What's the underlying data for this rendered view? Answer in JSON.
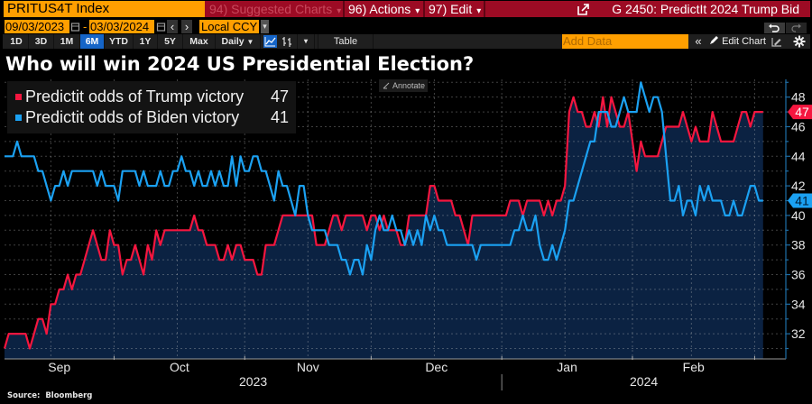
{
  "toolbar": {
    "ticker": "PRITUS4T Index",
    "suggested_charts": "94) Suggested Charts",
    "actions": "96) Actions",
    "edit": "97) Edit",
    "window_title": "G 2450: PredictIt 2024 Trump Bid",
    "start_date": "09/03/2023",
    "date_separator": "-",
    "end_date": "03/03/2024",
    "currency": "Local CCY",
    "periods": [
      "1D",
      "3D",
      "1M",
      "6M",
      "YTD",
      "1Y",
      "5Y",
      "Max"
    ],
    "selected_period": "6M",
    "frequency": "Daily",
    "table_label": "Table",
    "add_data_placeholder": "Add Data",
    "edit_chart": "Edit Chart",
    "annotate": "Annotate"
  },
  "icons": {
    "dropdown": "▾",
    "dropdown_filled": "▼",
    "prev": "‹",
    "next": "›",
    "collapse": "«"
  },
  "colors": {
    "toolbar_orange": "#ff9f00",
    "toolbar_red": "#9c0b24",
    "selected_blue": "#1565c8",
    "trump": "#f5163f",
    "biden": "#1ba1f2",
    "area_fill": "#0b2242"
  },
  "chart_data": {
    "type": "line",
    "title": "Who will win 2024 US Presidential Election?",
    "xlabel": "",
    "ylabel": "",
    "x_start_date": "2023-09-05",
    "x_unit": "days since 2023-09-05",
    "xlim": [
      0,
      185.4
    ],
    "ylim": [
      30.3,
      49.2
    ],
    "y_axis_side": "right",
    "y_ticks": [
      32,
      34,
      36,
      38,
      40,
      42,
      44,
      46,
      48
    ],
    "grid": true,
    "gridline_days": [
      11,
      26,
      41,
      57,
      72,
      87,
      102,
      118,
      133,
      149,
      163,
      178
    ],
    "month_boundary_days": [
      26,
      57,
      87,
      118,
      149,
      178
    ],
    "month_labels": [
      {
        "label": "Sep",
        "day": 13
      },
      {
        "label": "Oct",
        "day": 41.5
      },
      {
        "label": "Nov",
        "day": 72
      },
      {
        "label": "Dec",
        "day": 102.5
      },
      {
        "label": "Jan",
        "day": 133.5
      },
      {
        "label": "Feb",
        "day": 163.5
      }
    ],
    "year_labels": [
      {
        "label": "2023",
        "day": 59
      },
      {
        "label": "2024",
        "day": 151.7
      }
    ],
    "year_boundary_day": 118,
    "legend_position": "top-left",
    "source": "Source:  Bloomberg",
    "series": [
      {
        "key": "trump",
        "name": "Predictit odds of Trump victory",
        "last_value": 47,
        "color": "#f5163f",
        "area_fill": true,
        "area_color": "#0b2242",
        "tag_text_color": "#ffffff",
        "points": [
          [
            0,
            31
          ],
          [
            1,
            32
          ],
          [
            5,
            32
          ],
          [
            6,
            31
          ],
          [
            8,
            33
          ],
          [
            9,
            33
          ],
          [
            10,
            32
          ],
          [
            11,
            34
          ],
          [
            12,
            34
          ],
          [
            13,
            35
          ],
          [
            14,
            35
          ],
          [
            15,
            36
          ],
          [
            16,
            35
          ],
          [
            17,
            36
          ],
          [
            18,
            36
          ],
          [
            21,
            39
          ],
          [
            23,
            37
          ],
          [
            24,
            37
          ],
          [
            25,
            39
          ],
          [
            26,
            38
          ],
          [
            27,
            38
          ],
          [
            28,
            36
          ],
          [
            29,
            37
          ],
          [
            30,
            37
          ],
          [
            31,
            38
          ],
          [
            32,
            37
          ],
          [
            33,
            36
          ],
          [
            34,
            38
          ],
          [
            35,
            37
          ],
          [
            36,
            39
          ],
          [
            37,
            38
          ],
          [
            38,
            39
          ],
          [
            44,
            39
          ],
          [
            45,
            40
          ],
          [
            46,
            39
          ],
          [
            47,
            39
          ],
          [
            48,
            38
          ],
          [
            50,
            38
          ],
          [
            51,
            37
          ],
          [
            52,
            37
          ],
          [
            53,
            38
          ],
          [
            54,
            37
          ],
          [
            55,
            38
          ],
          [
            56,
            38
          ],
          [
            57,
            37
          ],
          [
            59,
            37
          ],
          [
            60,
            36
          ],
          [
            61,
            36
          ],
          [
            62,
            38
          ],
          [
            64,
            38
          ],
          [
            66,
            40
          ],
          [
            73,
            40
          ],
          [
            74,
            38
          ],
          [
            76,
            38
          ],
          [
            77,
            39
          ],
          [
            78,
            40
          ],
          [
            79,
            40
          ],
          [
            80,
            39
          ],
          [
            81,
            40
          ],
          [
            85,
            40
          ],
          [
            86,
            39
          ],
          [
            87,
            40
          ],
          [
            88,
            40
          ],
          [
            89,
            39
          ],
          [
            90,
            40
          ],
          [
            91,
            39
          ],
          [
            93,
            39
          ],
          [
            94,
            38
          ],
          [
            95,
            38
          ],
          [
            96,
            40
          ],
          [
            100,
            40
          ],
          [
            101,
            42
          ],
          [
            102,
            42
          ],
          [
            103,
            41
          ],
          [
            106,
            41
          ],
          [
            107,
            40
          ],
          [
            108,
            40
          ],
          [
            110,
            38
          ],
          [
            111,
            40
          ],
          [
            119,
            40
          ],
          [
            120,
            41
          ],
          [
            122,
            41
          ],
          [
            123,
            40
          ],
          [
            124,
            41
          ],
          [
            127,
            41
          ],
          [
            128,
            40
          ],
          [
            129,
            41
          ],
          [
            130,
            40
          ],
          [
            131,
            41
          ],
          [
            132,
            41
          ],
          [
            133,
            42
          ],
          [
            134,
            47
          ],
          [
            135,
            48
          ],
          [
            136,
            47
          ],
          [
            137,
            47
          ],
          [
            138,
            46
          ],
          [
            139,
            46
          ],
          [
            140,
            47
          ],
          [
            141,
            46
          ],
          [
            142,
            48
          ],
          [
            143,
            46
          ],
          [
            144,
            48
          ],
          [
            145,
            47
          ],
          [
            146,
            46
          ],
          [
            147,
            46
          ],
          [
            148,
            47
          ],
          [
            149,
            45
          ],
          [
            150,
            43
          ],
          [
            151,
            45
          ],
          [
            152,
            44
          ],
          [
            155,
            44
          ],
          [
            157,
            46
          ],
          [
            160,
            46
          ],
          [
            161,
            47
          ],
          [
            163,
            45
          ],
          [
            164,
            46
          ],
          [
            165,
            45
          ],
          [
            167,
            45
          ],
          [
            168,
            47
          ],
          [
            170,
            45
          ],
          [
            173,
            45
          ],
          [
            175,
            47
          ],
          [
            176,
            47
          ],
          [
            177,
            46
          ],
          [
            178,
            47
          ],
          [
            180,
            47
          ]
        ]
      },
      {
        "key": "biden",
        "name": "Predictit odds of Biden victory",
        "last_value": 41,
        "color": "#1ba1f2",
        "area_fill": false,
        "tag_text_color": "#001a33",
        "points": [
          [
            0,
            44
          ],
          [
            2,
            44
          ],
          [
            3,
            45
          ],
          [
            4,
            44
          ],
          [
            7,
            44
          ],
          [
            8,
            43
          ],
          [
            9,
            43
          ],
          [
            11,
            41
          ],
          [
            12,
            42
          ],
          [
            13,
            42
          ],
          [
            14,
            43
          ],
          [
            15,
            42
          ],
          [
            16,
            43
          ],
          [
            21,
            43
          ],
          [
            22,
            42
          ],
          [
            23,
            43
          ],
          [
            24,
            42
          ],
          [
            26,
            42
          ],
          [
            27,
            41
          ],
          [
            28,
            43
          ],
          [
            31,
            43
          ],
          [
            32,
            42
          ],
          [
            33,
            43
          ],
          [
            34,
            42
          ],
          [
            36,
            42
          ],
          [
            37,
            43
          ],
          [
            38,
            42
          ],
          [
            39,
            42
          ],
          [
            40,
            43
          ],
          [
            41,
            43
          ],
          [
            42,
            44
          ],
          [
            43,
            43
          ],
          [
            44,
            43
          ],
          [
            45,
            42
          ],
          [
            46,
            43
          ],
          [
            47,
            42
          ],
          [
            48,
            42
          ],
          [
            49,
            43
          ],
          [
            50,
            42
          ],
          [
            51,
            43
          ],
          [
            52,
            42
          ],
          [
            53,
            42
          ],
          [
            54,
            44
          ],
          [
            55,
            42
          ],
          [
            56,
            44
          ],
          [
            57,
            43
          ],
          [
            58,
            43
          ],
          [
            59,
            44
          ],
          [
            60,
            44
          ],
          [
            61,
            43
          ],
          [
            62,
            43
          ],
          [
            64,
            41
          ],
          [
            65,
            43
          ],
          [
            66,
            42
          ],
          [
            67,
            42
          ],
          [
            69,
            40
          ],
          [
            70,
            42
          ],
          [
            71,
            42
          ],
          [
            72,
            40
          ],
          [
            73,
            39
          ],
          [
            76,
            39
          ],
          [
            77,
            38
          ],
          [
            79,
            38
          ],
          [
            80,
            37
          ],
          [
            81,
            37
          ],
          [
            82,
            36
          ],
          [
            83,
            37
          ],
          [
            84,
            37
          ],
          [
            85,
            36
          ],
          [
            86,
            38
          ],
          [
            87,
            37
          ],
          [
            88,
            39
          ],
          [
            89,
            40
          ],
          [
            90,
            39
          ],
          [
            91,
            39
          ],
          [
            92,
            40
          ],
          [
            93,
            39
          ],
          [
            94,
            39
          ],
          [
            95,
            38
          ],
          [
            96,
            39
          ],
          [
            97,
            38
          ],
          [
            98,
            39
          ],
          [
            99,
            38
          ],
          [
            100,
            40
          ],
          [
            101,
            39
          ],
          [
            102,
            40
          ],
          [
            103,
            39
          ],
          [
            104,
            39
          ],
          [
            105,
            38
          ],
          [
            111,
            38
          ],
          [
            112,
            37
          ],
          [
            113,
            38
          ],
          [
            120,
            38
          ],
          [
            121,
            39
          ],
          [
            122,
            39
          ],
          [
            123,
            40
          ],
          [
            124,
            39
          ],
          [
            125,
            39
          ],
          [
            126,
            40
          ],
          [
            127,
            38
          ],
          [
            128,
            37
          ],
          [
            129,
            37
          ],
          [
            130,
            38
          ],
          [
            131,
            37
          ],
          [
            132,
            38
          ],
          [
            133,
            39
          ],
          [
            134,
            41
          ],
          [
            135,
            41
          ],
          [
            139,
            45
          ],
          [
            140,
            45
          ],
          [
            141,
            47
          ],
          [
            143,
            47
          ],
          [
            144,
            46
          ],
          [
            145,
            46
          ],
          [
            146,
            47
          ],
          [
            147,
            48
          ],
          [
            148,
            47
          ],
          [
            150,
            47
          ],
          [
            151,
            49
          ],
          [
            152,
            48
          ],
          [
            153,
            47
          ],
          [
            154,
            48
          ],
          [
            155,
            48
          ],
          [
            156,
            47
          ],
          [
            157,
            44
          ],
          [
            158,
            41
          ],
          [
            159,
            41
          ],
          [
            160,
            42
          ],
          [
            161,
            40
          ],
          [
            162,
            41
          ],
          [
            163,
            41
          ],
          [
            164,
            40
          ],
          [
            165,
            42
          ],
          [
            166,
            41
          ],
          [
            167,
            42
          ],
          [
            168,
            41
          ],
          [
            170,
            41
          ],
          [
            171,
            40
          ],
          [
            172,
            40
          ],
          [
            173,
            41
          ],
          [
            174,
            40
          ],
          [
            175,
            40
          ],
          [
            177,
            42
          ],
          [
            178,
            42
          ],
          [
            179,
            41
          ],
          [
            180,
            41
          ]
        ]
      }
    ]
  }
}
